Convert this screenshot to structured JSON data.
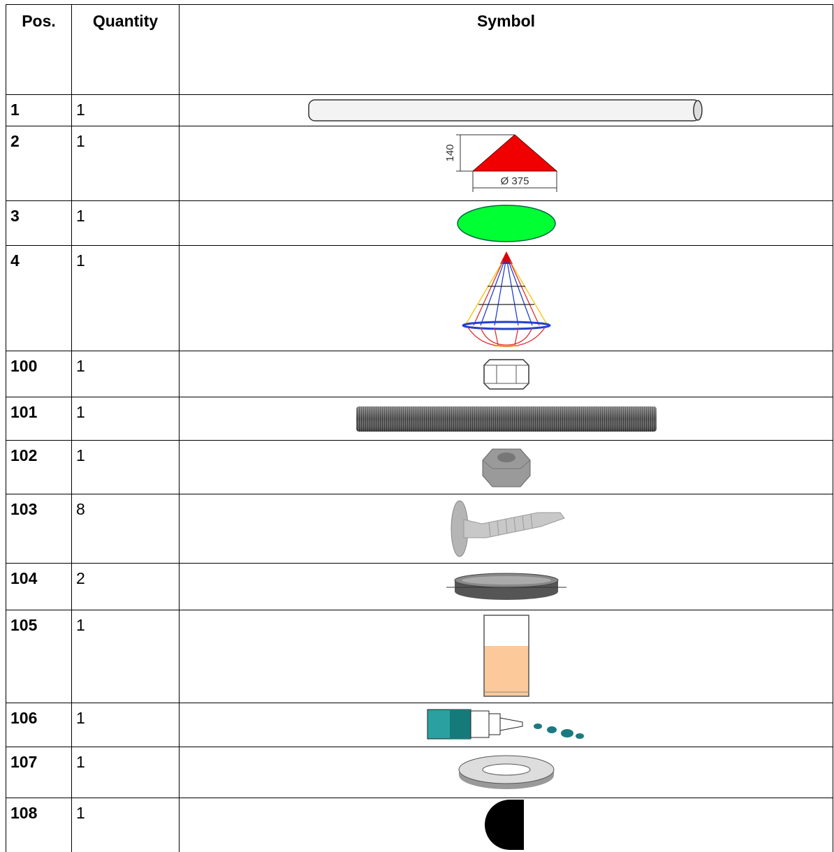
{
  "table": {
    "header": [
      "Pos.",
      "Quantity",
      "Symbol"
    ],
    "rows": [
      [
        "1",
        "1"
      ],
      [
        "2",
        "1"
      ],
      [
        "3",
        "1"
      ],
      [
        "4",
        "1"
      ],
      [
        "100",
        "1"
      ],
      [
        "101",
        "1"
      ],
      [
        "102",
        "1"
      ],
      [
        "103",
        "8"
      ],
      [
        "104",
        "2"
      ],
      [
        "105",
        "1"
      ],
      [
        "106",
        "1"
      ],
      [
        "107",
        "1"
      ],
      [
        "108",
        "1"
      ]
    ],
    "symbol_labels": {
      "height": "140",
      "diameter": "Ø 375"
    }
  }
}
